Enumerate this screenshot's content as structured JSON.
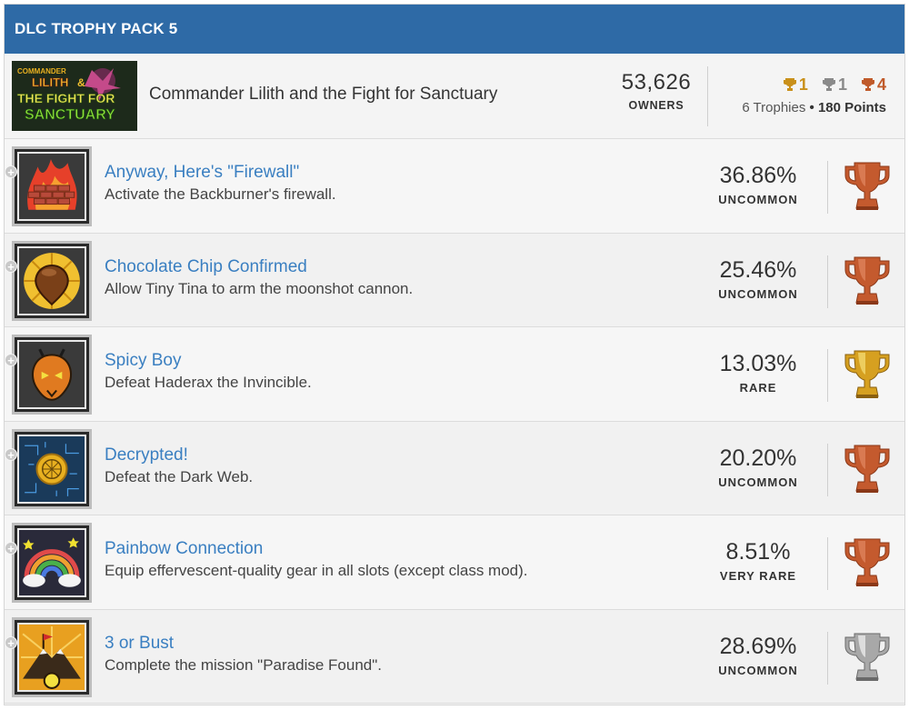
{
  "section": {
    "title": "DLC TROPHY PACK 5"
  },
  "dlc": {
    "art_text": [
      "COMMANDER",
      "LILITH",
      "&",
      "THE FIGHT FOR",
      "SANCTUARY"
    ],
    "name": "Commander Lilith and the Fight for Sanctuary",
    "owners_count": "53,626",
    "owners_label": "OWNERS",
    "gold_count": "1",
    "silver_count": "1",
    "bronze_count": "4",
    "trophies_label": "6 Trophies",
    "separator": "•",
    "points_label": "180 Points"
  },
  "colors": {
    "header": "#2e6aa6",
    "link": "#3a7fc1",
    "gold": "#c9901a",
    "silver": "#8a8a8a",
    "bronze": "#c05a2a"
  },
  "trophies": [
    {
      "name": "Anyway, Here's \"Firewall\"",
      "description": "Activate the Backburner's firewall.",
      "percent": "36.86%",
      "rarity": "UNCOMMON",
      "grade": "bronze",
      "icon": "firewall-icon"
    },
    {
      "name": "Chocolate Chip Confirmed",
      "description": "Allow Tiny Tina to arm the moonshot cannon.",
      "percent": "25.46%",
      "rarity": "UNCOMMON",
      "grade": "bronze",
      "icon": "chocolate-chip-icon"
    },
    {
      "name": "Spicy Boy",
      "description": "Defeat Haderax the Invincible.",
      "percent": "13.03%",
      "rarity": "RARE",
      "grade": "gold",
      "icon": "ant-head-icon"
    },
    {
      "name": "Decrypted!",
      "description": "Defeat the Dark Web.",
      "percent": "20.20%",
      "rarity": "UNCOMMON",
      "grade": "bronze",
      "icon": "dark-web-coin-icon"
    },
    {
      "name": "Painbow Connection",
      "description": "Equip effervescent-quality gear in all slots (except class mod).",
      "percent": "8.51%",
      "rarity": "VERY RARE",
      "grade": "bronze",
      "icon": "rainbow-icon"
    },
    {
      "name": "3 or Bust",
      "description": "Complete the mission \"Paradise Found\".",
      "percent": "28.69%",
      "rarity": "UNCOMMON",
      "grade": "silver",
      "icon": "mountain-flag-icon"
    }
  ]
}
